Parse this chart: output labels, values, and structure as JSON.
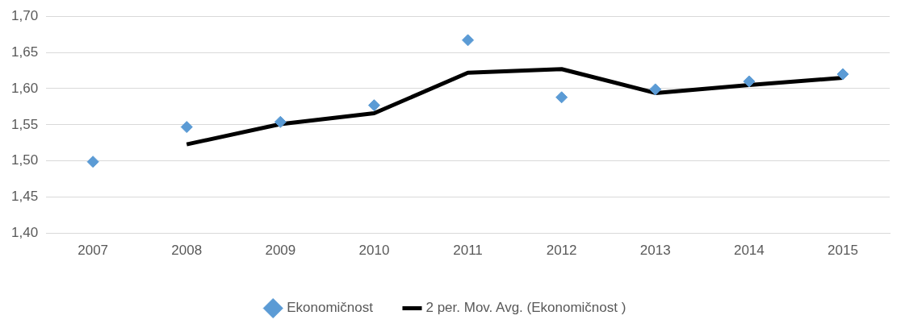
{
  "chart_data": {
    "type": "scatter",
    "categories": [
      "2007",
      "2008",
      "2009",
      "2010",
      "2011",
      "2012",
      "2013",
      "2014",
      "2015"
    ],
    "series": [
      {
        "name": "Ekonomičnost",
        "color": "#5b9bd5",
        "marker": "diamond",
        "values": [
          1.499,
          1.547,
          1.554,
          1.577,
          1.667,
          1.588,
          1.599,
          1.61,
          1.62
        ]
      },
      {
        "name": "2 per. Mov. Avg. (Ekonomičnost )",
        "type": "line",
        "marker": "none",
        "color": "#000000",
        "values": [
          null,
          1.523,
          1.551,
          1.566,
          1.622,
          1.627,
          1.594,
          1.605,
          1.615
        ]
      }
    ],
    "ylim": [
      1.4,
      1.7
    ],
    "yticks": [
      {
        "value": 1.4,
        "label": "1,40"
      },
      {
        "value": 1.45,
        "label": "1,45"
      },
      {
        "value": 1.5,
        "label": "1,50"
      },
      {
        "value": 1.55,
        "label": "1,55"
      },
      {
        "value": 1.6,
        "label": "1,60"
      },
      {
        "value": 1.65,
        "label": "1,65"
      },
      {
        "value": 1.7,
        "label": "1,70"
      }
    ],
    "grid": "y",
    "legend": "bottom"
  }
}
